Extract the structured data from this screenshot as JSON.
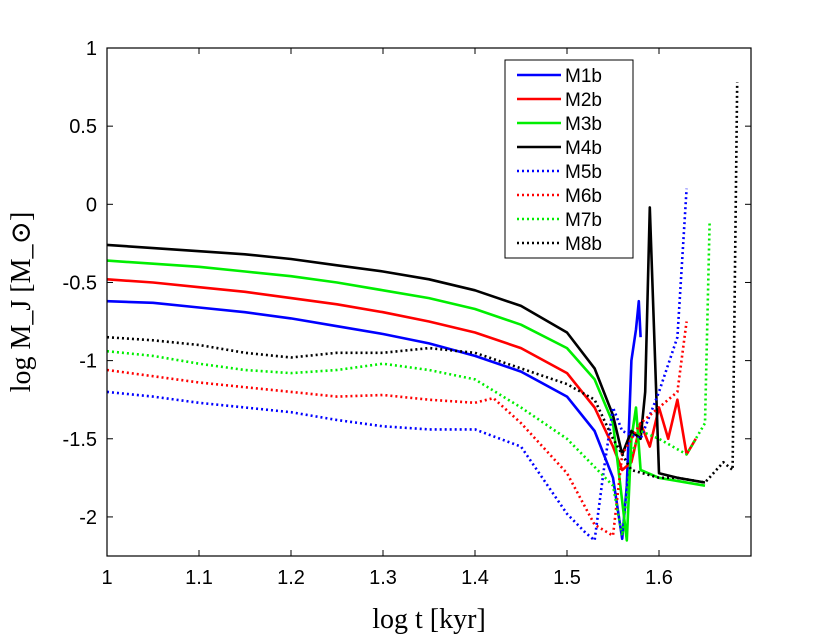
{
  "chart_data": {
    "type": "line",
    "title": "",
    "xlabel": "log t [kyr]",
    "ylabel": "log M_J [M_⊙]",
    "xlim": [
      1.0,
      1.7
    ],
    "ylim": [
      -2.25,
      1.0
    ],
    "xticks": [
      1.0,
      1.1,
      1.2,
      1.3,
      1.4,
      1.5,
      1.6
    ],
    "xtick_labels": [
      "1",
      "1.1",
      "1.2",
      "1.3",
      "1.4",
      "1.5",
      "1.6"
    ],
    "yticks": [
      1.0,
      0.5,
      0.0,
      -0.5,
      -1.0,
      -1.5,
      -2.0
    ],
    "ytick_labels": [
      "1",
      "0.5",
      "0",
      "-0.5",
      "-1",
      "-1.5",
      "-2"
    ],
    "grid": false,
    "legend_position": "top-right",
    "series": [
      {
        "name": "M1b",
        "color": "#0000ff",
        "dash": "solid",
        "x": [
          1.0,
          1.05,
          1.1,
          1.15,
          1.2,
          1.25,
          1.3,
          1.35,
          1.4,
          1.45,
          1.5,
          1.53,
          1.55,
          1.56,
          1.565,
          1.57,
          1.575,
          1.578,
          1.58
        ],
        "y": [
          -0.62,
          -0.63,
          -0.66,
          -0.69,
          -0.73,
          -0.78,
          -0.83,
          -0.89,
          -0.97,
          -1.07,
          -1.23,
          -1.45,
          -1.75,
          -2.14,
          -1.8,
          -1.0,
          -0.8,
          -0.62,
          -0.85
        ]
      },
      {
        "name": "M2b",
        "color": "#ff0000",
        "dash": "solid",
        "x": [
          1.0,
          1.05,
          1.1,
          1.15,
          1.2,
          1.25,
          1.3,
          1.35,
          1.4,
          1.45,
          1.5,
          1.53,
          1.55,
          1.56,
          1.57,
          1.58,
          1.59,
          1.6,
          1.61,
          1.62,
          1.63,
          1.64
        ],
        "y": [
          -0.48,
          -0.5,
          -0.53,
          -0.56,
          -0.6,
          -0.64,
          -0.69,
          -0.75,
          -0.82,
          -0.92,
          -1.08,
          -1.3,
          -1.55,
          -1.7,
          -1.65,
          -1.4,
          -1.55,
          -1.3,
          -1.5,
          -1.25,
          -1.6,
          -1.5
        ]
      },
      {
        "name": "M3b",
        "color": "#00ee00",
        "dash": "solid",
        "x": [
          1.0,
          1.05,
          1.1,
          1.15,
          1.2,
          1.25,
          1.3,
          1.35,
          1.4,
          1.45,
          1.5,
          1.53,
          1.55,
          1.565,
          1.57,
          1.575,
          1.58,
          1.6,
          1.65
        ],
        "y": [
          -0.36,
          -0.38,
          -0.4,
          -0.43,
          -0.46,
          -0.5,
          -0.55,
          -0.6,
          -0.67,
          -0.77,
          -0.92,
          -1.12,
          -1.4,
          -2.15,
          -1.5,
          -1.3,
          -1.7,
          -1.75,
          -1.8
        ]
      },
      {
        "name": "M4b",
        "color": "#000000",
        "dash": "solid",
        "x": [
          1.0,
          1.05,
          1.1,
          1.15,
          1.2,
          1.25,
          1.3,
          1.35,
          1.4,
          1.45,
          1.5,
          1.53,
          1.55,
          1.56,
          1.57,
          1.58,
          1.585,
          1.59,
          1.6,
          1.62,
          1.65
        ],
        "y": [
          -0.26,
          -0.28,
          -0.3,
          -0.32,
          -0.35,
          -0.39,
          -0.43,
          -0.48,
          -0.55,
          -0.65,
          -0.82,
          -1.05,
          -1.35,
          -1.6,
          -1.45,
          -1.5,
          -1.2,
          -0.02,
          -1.72,
          -1.75,
          -1.78
        ]
      },
      {
        "name": "M5b",
        "color": "#0000ff",
        "dash": "dotted",
        "x": [
          1.0,
          1.05,
          1.1,
          1.15,
          1.2,
          1.25,
          1.3,
          1.35,
          1.4,
          1.45,
          1.5,
          1.52,
          1.53,
          1.54,
          1.55,
          1.56,
          1.58,
          1.6,
          1.62,
          1.63
        ],
        "y": [
          -1.2,
          -1.23,
          -1.27,
          -1.3,
          -1.33,
          -1.38,
          -1.42,
          -1.44,
          -1.44,
          -1.55,
          -1.98,
          -2.1,
          -2.15,
          -1.7,
          -1.3,
          -1.45,
          -1.5,
          -1.2,
          -0.85,
          0.1
        ]
      },
      {
        "name": "M6b",
        "color": "#ff0000",
        "dash": "dotted",
        "x": [
          1.0,
          1.05,
          1.1,
          1.15,
          1.2,
          1.25,
          1.3,
          1.35,
          1.4,
          1.42,
          1.45,
          1.5,
          1.53,
          1.55,
          1.56,
          1.58,
          1.6,
          1.62,
          1.63
        ],
        "y": [
          -1.06,
          -1.1,
          -1.14,
          -1.17,
          -1.2,
          -1.23,
          -1.22,
          -1.25,
          -1.27,
          -1.24,
          -1.4,
          -1.72,
          -2.05,
          -2.12,
          -1.6,
          -1.4,
          -1.3,
          -1.2,
          -0.75
        ]
      },
      {
        "name": "M7b",
        "color": "#00ee00",
        "dash": "dotted",
        "x": [
          1.0,
          1.05,
          1.1,
          1.15,
          1.2,
          1.25,
          1.3,
          1.35,
          1.4,
          1.45,
          1.5,
          1.55,
          1.56,
          1.57,
          1.58,
          1.6,
          1.63,
          1.65,
          1.655
        ],
        "y": [
          -0.94,
          -0.97,
          -1.02,
          -1.06,
          -1.08,
          -1.06,
          -1.02,
          -1.06,
          -1.12,
          -1.3,
          -1.5,
          -1.8,
          -2.12,
          -1.6,
          -1.45,
          -1.5,
          -1.6,
          -1.4,
          -0.12
        ]
      },
      {
        "name": "M8b",
        "color": "#000000",
        "dash": "dotted",
        "x": [
          1.0,
          1.05,
          1.1,
          1.15,
          1.2,
          1.25,
          1.3,
          1.35,
          1.4,
          1.45,
          1.5,
          1.53,
          1.55,
          1.57,
          1.6,
          1.62,
          1.65,
          1.67,
          1.68,
          1.685
        ],
        "y": [
          -0.85,
          -0.87,
          -0.9,
          -0.95,
          -0.98,
          -0.95,
          -0.95,
          -0.92,
          -0.95,
          -1.05,
          -1.15,
          -1.25,
          -1.5,
          -1.7,
          -1.75,
          -1.75,
          -1.78,
          -1.65,
          -1.7,
          0.78
        ]
      }
    ]
  }
}
